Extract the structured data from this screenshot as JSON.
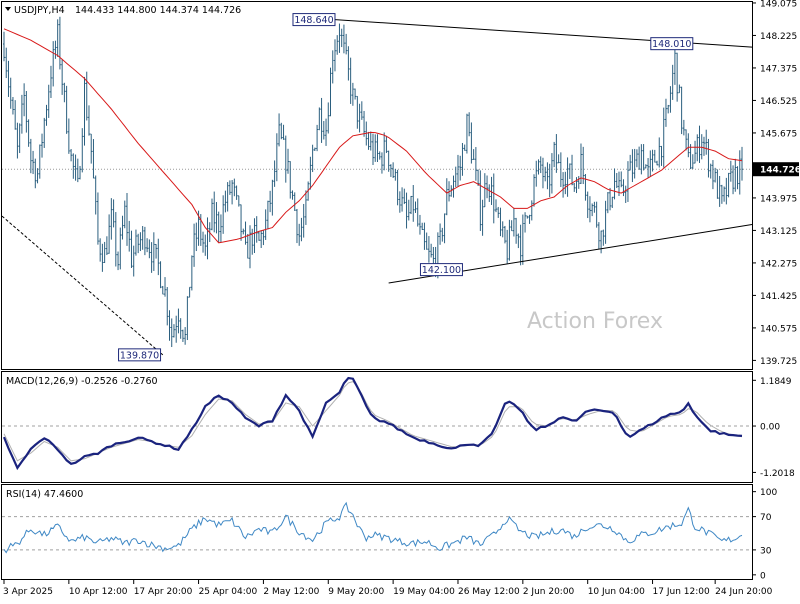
{
  "header": {
    "symbol": "USDJPY,H4",
    "ohlc": "144.433 144.800 144.374 144.726"
  },
  "watermark": "Action Forex",
  "colors": {
    "candles": "#2b5f7f",
    "ma": "#d81818",
    "trendline": "#000000",
    "macd_line": "#1a237e",
    "macd_signal": "#b0b0b0",
    "rsi": "#3f88c5",
    "price_tag_bg": "#000000",
    "label_border": "#1f2a7a"
  },
  "chart_data": [
    {
      "type": "candlestick",
      "name": "price",
      "current_price": 144.726,
      "ylim": [
        139.5,
        149.1
      ],
      "yticks": [
        139.725,
        140.575,
        141.425,
        142.275,
        143.125,
        143.975,
        144.825,
        145.675,
        146.525,
        147.375,
        148.225,
        149.075
      ],
      "ytick_labels": [
        "139.725",
        "140.575",
        "141.425",
        "142.275",
        "143.125",
        "143.975",
        "144.825",
        "145.675",
        "146.525",
        "147.375",
        "148.225",
        "149.075"
      ],
      "xtick_labels": [
        "3 Apr 2025",
        "10 Apr 12:00",
        "17 Apr 20:00",
        "25 Apr 04:00",
        "2 May 12:00",
        "9 May 20:00",
        "19 May 04:00",
        "26 May 12:00",
        "2 Jun 20:00",
        "10 Jun 04:00",
        "17 Jun 12:00",
        "24 Jun 20:00"
      ],
      "annotations": [
        {
          "label": "148.640",
          "value": 148.64
        },
        {
          "label": "148.010",
          "value": 148.01
        },
        {
          "label": "142.100",
          "value": 142.1
        },
        {
          "label": "139.870",
          "value": 139.87
        }
      ],
      "close_path": [
        [
          0,
          148.0
        ],
        [
          3,
          146.5
        ],
        [
          6,
          145.2
        ],
        [
          9,
          146.6
        ],
        [
          12,
          145.0
        ],
        [
          15,
          144.6
        ],
        [
          18,
          146.0
        ],
        [
          21,
          147.3
        ],
        [
          24,
          148.2
        ],
        [
          27,
          146.5
        ],
        [
          30,
          145.0
        ],
        [
          33,
          144.2
        ],
        [
          36,
          146.8
        ],
        [
          39,
          145.2
        ],
        [
          42,
          142.8
        ],
        [
          45,
          142.5
        ],
        [
          48,
          143.4
        ],
        [
          51,
          142.3
        ],
        [
          54,
          143.6
        ],
        [
          57,
          142.4
        ],
        [
          60,
          142.8
        ],
        [
          63,
          143.0
        ],
        [
          66,
          142.6
        ],
        [
          69,
          142.2
        ],
        [
          72,
          141.5
        ],
        [
          75,
          140.4
        ],
        [
          78,
          141.0
        ],
        [
          81,
          140.3
        ],
        [
          84,
          142.5
        ],
        [
          87,
          143.2
        ],
        [
          90,
          142.6
        ],
        [
          93,
          143.5
        ],
        [
          96,
          143.3
        ],
        [
          99,
          143.9
        ],
        [
          102,
          144.3
        ],
        [
          105,
          143.5
        ],
        [
          108,
          142.5
        ],
        [
          111,
          143.0
        ],
        [
          114,
          142.8
        ],
        [
          117,
          143.3
        ],
        [
          120,
          144.2
        ],
        [
          123,
          145.6
        ],
        [
          126,
          145.0
        ],
        [
          129,
          144.0
        ],
        [
          132,
          143.0
        ],
        [
          135,
          143.6
        ],
        [
          138,
          145.2
        ],
        [
          141,
          146.2
        ],
        [
          144,
          145.8
        ],
        [
          147,
          147.8
        ],
        [
          150,
          148.4
        ],
        [
          153,
          147.5
        ],
        [
          156,
          146.6
        ],
        [
          159,
          146.0
        ],
        [
          162,
          145.5
        ],
        [
          165,
          145.2
        ],
        [
          168,
          145.0
        ],
        [
          171,
          145.3
        ],
        [
          174,
          144.6
        ],
        [
          177,
          144.0
        ],
        [
          180,
          143.4
        ],
        [
          183,
          143.8
        ],
        [
          186,
          143.0
        ],
        [
          189,
          142.5
        ],
        [
          192,
          142.3
        ],
        [
          195,
          142.8
        ],
        [
          198,
          144.0
        ],
        [
          201,
          144.5
        ],
        [
          204,
          144.8
        ],
        [
          207,
          145.9
        ],
        [
          210,
          144.9
        ],
        [
          213,
          143.6
        ],
        [
          216,
          144.5
        ],
        [
          219,
          143.9
        ],
        [
          222,
          143.0
        ],
        [
          225,
          142.6
        ],
        [
          228,
          143.4
        ],
        [
          231,
          142.8
        ],
        [
          234,
          143.5
        ],
        [
          237,
          144.4
        ],
        [
          240,
          144.8
        ],
        [
          243,
          144.2
        ],
        [
          246,
          145.1
        ],
        [
          249,
          144.6
        ],
        [
          252,
          144.7
        ],
        [
          255,
          144.3
        ],
        [
          258,
          144.9
        ],
        [
          261,
          144.0
        ],
        [
          264,
          143.6
        ],
        [
          267,
          143.0
        ],
        [
          270,
          143.8
        ],
        [
          273,
          144.4
        ],
        [
          276,
          144.0
        ],
        [
          279,
          144.6
        ],
        [
          282,
          144.8
        ],
        [
          285,
          145.2
        ],
        [
          288,
          144.6
        ],
        [
          291,
          145.0
        ],
        [
          294,
          145.4
        ],
        [
          297,
          146.3
        ],
        [
          300,
          147.6
        ],
        [
          303,
          146.0
        ],
        [
          306,
          144.9
        ],
        [
          309,
          145.1
        ],
        [
          312,
          145.6
        ],
        [
          315,
          145.0
        ],
        [
          318,
          144.4
        ],
        [
          321,
          143.8
        ],
        [
          324,
          144.3
        ],
        [
          327,
          144.6
        ],
        [
          330,
          144.726
        ]
      ],
      "ma_path": [
        [
          0,
          148.4
        ],
        [
          12,
          148.1
        ],
        [
          24,
          147.7
        ],
        [
          36,
          147.1
        ],
        [
          48,
          146.3
        ],
        [
          60,
          145.4
        ],
        [
          72,
          144.6
        ],
        [
          84,
          143.8
        ],
        [
          90,
          143.2
        ],
        [
          96,
          142.8
        ],
        [
          105,
          142.9
        ],
        [
          114,
          143.1
        ],
        [
          120,
          143.2
        ],
        [
          126,
          143.6
        ],
        [
          132,
          143.9
        ],
        [
          138,
          144.3
        ],
        [
          144,
          144.8
        ],
        [
          150,
          145.3
        ],
        [
          156,
          145.6
        ],
        [
          165,
          145.7
        ],
        [
          171,
          145.6
        ],
        [
          180,
          145.2
        ],
        [
          189,
          144.6
        ],
        [
          198,
          144.1
        ],
        [
          204,
          144.3
        ],
        [
          210,
          144.4
        ],
        [
          216,
          144.2
        ],
        [
          222,
          144.0
        ],
        [
          228,
          143.7
        ],
        [
          234,
          143.7
        ],
        [
          240,
          143.9
        ],
        [
          246,
          144.0
        ],
        [
          252,
          144.3
        ],
        [
          258,
          144.5
        ],
        [
          264,
          144.4
        ],
        [
          270,
          144.2
        ],
        [
          276,
          144.1
        ],
        [
          282,
          144.3
        ],
        [
          288,
          144.5
        ],
        [
          294,
          144.7
        ],
        [
          300,
          145.0
        ],
        [
          306,
          145.3
        ],
        [
          312,
          145.3
        ],
        [
          318,
          145.2
        ],
        [
          324,
          145.0
        ],
        [
          330,
          144.95
        ]
      ]
    },
    {
      "type": "line",
      "name": "MACD",
      "title": "MACD(12,26,9) -0.2526 -0.2760",
      "ylim": [
        -1.45,
        1.4
      ],
      "yticks": [
        1.1849,
        0.0,
        -1.2018
      ],
      "ytick_labels": [
        "1.1849",
        "0.00",
        "-1.2018"
      ],
      "reference_line": 0.0,
      "macd_path": [
        [
          0,
          -0.3
        ],
        [
          6,
          -1.1
        ],
        [
          12,
          -0.6
        ],
        [
          18,
          -0.3
        ],
        [
          24,
          -0.6
        ],
        [
          30,
          -1.0
        ],
        [
          36,
          -0.8
        ],
        [
          42,
          -0.7
        ],
        [
          48,
          -0.5
        ],
        [
          54,
          -0.4
        ],
        [
          60,
          -0.3
        ],
        [
          66,
          -0.4
        ],
        [
          72,
          -0.5
        ],
        [
          78,
          -0.6
        ],
        [
          84,
          -0.1
        ],
        [
          90,
          0.5
        ],
        [
          96,
          0.8
        ],
        [
          102,
          0.6
        ],
        [
          108,
          0.2
        ],
        [
          114,
          0.0
        ],
        [
          120,
          0.15
        ],
        [
          126,
          0.8
        ],
        [
          132,
          0.4
        ],
        [
          138,
          -0.3
        ],
        [
          144,
          0.6
        ],
        [
          150,
          0.85
        ],
        [
          153,
          1.25
        ],
        [
          156,
          1.2
        ],
        [
          159,
          0.9
        ],
        [
          162,
          0.5
        ],
        [
          165,
          0.2
        ],
        [
          171,
          0.1
        ],
        [
          177,
          -0.1
        ],
        [
          183,
          -0.3
        ],
        [
          189,
          -0.4
        ],
        [
          195,
          -0.5
        ],
        [
          201,
          -0.6
        ],
        [
          207,
          -0.45
        ],
        [
          213,
          -0.5
        ],
        [
          219,
          -0.15
        ],
        [
          225,
          0.7
        ],
        [
          231,
          0.4
        ],
        [
          237,
          -0.1
        ],
        [
          243,
          0.0
        ],
        [
          249,
          0.25
        ],
        [
          255,
          0.1
        ],
        [
          261,
          0.4
        ],
        [
          267,
          0.4
        ],
        [
          273,
          0.35
        ],
        [
          279,
          -0.3
        ],
        [
          285,
          -0.1
        ],
        [
          291,
          0.1
        ],
        [
          297,
          0.3
        ],
        [
          303,
          0.35
        ],
        [
          306,
          0.6
        ],
        [
          309,
          0.3
        ],
        [
          315,
          -0.1
        ],
        [
          321,
          -0.2
        ],
        [
          327,
          -0.25
        ],
        [
          330,
          -0.2526
        ]
      ],
      "signal_path": [
        [
          0,
          -0.2
        ],
        [
          6,
          -0.9
        ],
        [
          12,
          -0.7
        ],
        [
          18,
          -0.4
        ],
        [
          24,
          -0.55
        ],
        [
          30,
          -0.9
        ],
        [
          36,
          -0.85
        ],
        [
          42,
          -0.7
        ],
        [
          48,
          -0.55
        ],
        [
          54,
          -0.45
        ],
        [
          60,
          -0.35
        ],
        [
          66,
          -0.4
        ],
        [
          72,
          -0.5
        ],
        [
          78,
          -0.55
        ],
        [
          84,
          -0.25
        ],
        [
          90,
          0.3
        ],
        [
          96,
          0.7
        ],
        [
          102,
          0.65
        ],
        [
          108,
          0.3
        ],
        [
          114,
          0.05
        ],
        [
          120,
          0.1
        ],
        [
          126,
          0.6
        ],
        [
          132,
          0.5
        ],
        [
          138,
          0.0
        ],
        [
          144,
          0.4
        ],
        [
          150,
          0.8
        ],
        [
          153,
          1.1
        ],
        [
          156,
          1.15
        ],
        [
          159,
          0.95
        ],
        [
          162,
          0.6
        ],
        [
          165,
          0.3
        ],
        [
          171,
          0.15
        ],
        [
          177,
          -0.05
        ],
        [
          183,
          -0.25
        ],
        [
          189,
          -0.35
        ],
        [
          195,
          -0.45
        ],
        [
          201,
          -0.55
        ],
        [
          207,
          -0.5
        ],
        [
          213,
          -0.5
        ],
        [
          219,
          -0.25
        ],
        [
          225,
          0.5
        ],
        [
          231,
          0.5
        ],
        [
          237,
          0.05
        ],
        [
          243,
          0.0
        ],
        [
          249,
          0.2
        ],
        [
          255,
          0.15
        ],
        [
          261,
          0.3
        ],
        [
          267,
          0.4
        ],
        [
          273,
          0.4
        ],
        [
          279,
          -0.1
        ],
        [
          285,
          -0.15
        ],
        [
          291,
          0.05
        ],
        [
          297,
          0.25
        ],
        [
          303,
          0.3
        ],
        [
          306,
          0.45
        ],
        [
          309,
          0.4
        ],
        [
          315,
          0.05
        ],
        [
          321,
          -0.15
        ],
        [
          327,
          -0.25
        ],
        [
          330,
          -0.276
        ]
      ]
    },
    {
      "type": "line",
      "name": "RSI",
      "title": "RSI(14) 47.4600",
      "ylim": [
        -5,
        108
      ],
      "yticks": [
        100,
        70,
        30,
        0
      ],
      "ytick_labels": [
        "100",
        "70",
        "30",
        "0"
      ],
      "reference_lines": [
        70,
        30
      ],
      "rsi_path": [
        [
          0,
          30
        ],
        [
          6,
          38
        ],
        [
          12,
          55
        ],
        [
          18,
          48
        ],
        [
          24,
          58
        ],
        [
          30,
          40
        ],
        [
          36,
          45
        ],
        [
          42,
          38
        ],
        [
          48,
          44
        ],
        [
          54,
          38
        ],
        [
          60,
          42
        ],
        [
          66,
          36
        ],
        [
          72,
          32
        ],
        [
          78,
          35
        ],
        [
          84,
          55
        ],
        [
          90,
          68
        ],
        [
          96,
          60
        ],
        [
          102,
          65
        ],
        [
          108,
          45
        ],
        [
          114,
          55
        ],
        [
          120,
          50
        ],
        [
          126,
          70
        ],
        [
          132,
          52
        ],
        [
          138,
          42
        ],
        [
          144,
          62
        ],
        [
          150,
          70
        ],
        [
          153,
          82
        ],
        [
          156,
          72
        ],
        [
          159,
          55
        ],
        [
          162,
          45
        ],
        [
          165,
          48
        ],
        [
          171,
          45
        ],
        [
          177,
          40
        ],
        [
          183,
          38
        ],
        [
          189,
          40
        ],
        [
          195,
          32
        ],
        [
          201,
          38
        ],
        [
          207,
          45
        ],
        [
          213,
          36
        ],
        [
          219,
          48
        ],
        [
          225,
          68
        ],
        [
          231,
          52
        ],
        [
          237,
          45
        ],
        [
          243,
          50
        ],
        [
          249,
          55
        ],
        [
          255,
          46
        ],
        [
          261,
          58
        ],
        [
          267,
          60
        ],
        [
          273,
          55
        ],
        [
          279,
          40
        ],
        [
          285,
          48
        ],
        [
          291,
          52
        ],
        [
          297,
          58
        ],
        [
          303,
          62
        ],
        [
          306,
          78
        ],
        [
          309,
          58
        ],
        [
          315,
          50
        ],
        [
          321,
          40
        ],
        [
          327,
          44
        ],
        [
          330,
          47.46
        ]
      ]
    }
  ]
}
